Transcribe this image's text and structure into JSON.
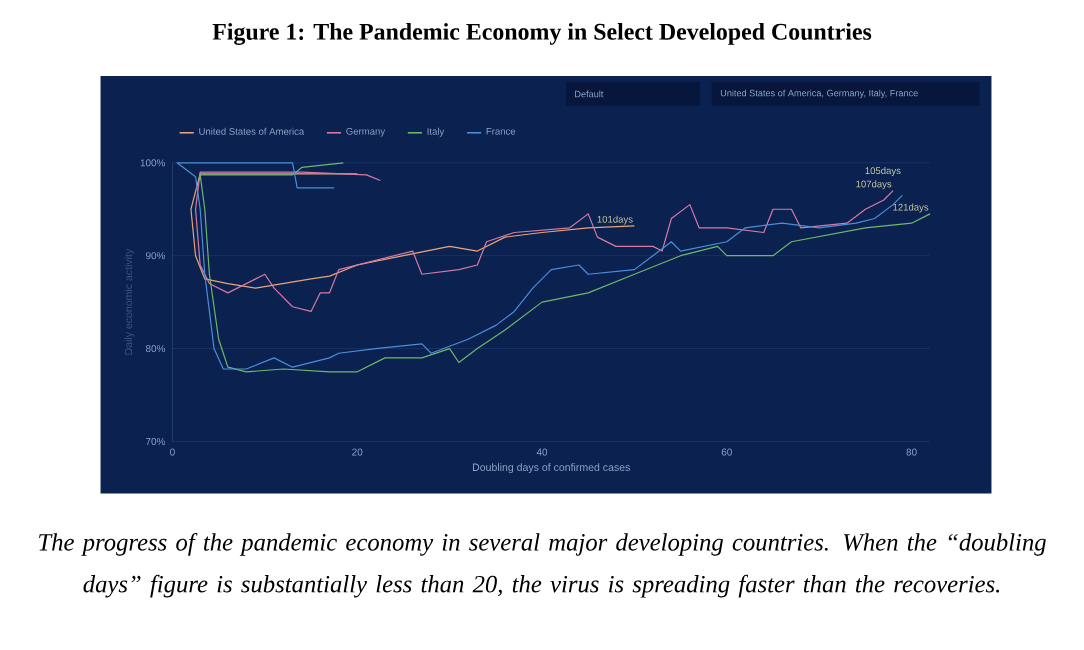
{
  "chart_data": {
    "type": "line",
    "title": "Figure 1: The Pandemic Economy in Select Developed Countries",
    "xlabel": "Doubling days of confirmed cases",
    "ylabel": "Daily economic activity",
    "xlim": [
      0,
      82
    ],
    "ylim": [
      70,
      100
    ],
    "xticks": [
      0,
      20,
      40,
      60,
      80
    ],
    "yticks": [
      {
        "value": 70,
        "label": "70%"
      },
      {
        "value": 80,
        "label": "80%"
      },
      {
        "value": 90,
        "label": "90%"
      },
      {
        "value": 100,
        "label": "100%"
      }
    ],
    "grid": "y",
    "legend": "top left",
    "line_style": "solid",
    "series": [
      {
        "name": "United States of America",
        "color": "#e8a57a",
        "x": [
          20,
          3,
          2,
          2.5,
          3.5,
          6,
          9,
          12,
          15,
          17,
          20,
          25,
          30,
          33,
          36,
          40,
          45,
          50
        ],
        "values": [
          98.8,
          98.8,
          95,
          90,
          87.5,
          87,
          86.5,
          87,
          87.5,
          87.8,
          89,
          90,
          91,
          90.5,
          92,
          92.5,
          93,
          93.2
        ]
      },
      {
        "name": "Germany",
        "color": "#d77aa5",
        "x": [
          22.5,
          21,
          14,
          3,
          2.5,
          3,
          4,
          6,
          10,
          11,
          13,
          15,
          16,
          17,
          18,
          22,
          26,
          27,
          31,
          33,
          34,
          37,
          43,
          45,
          46,
          48,
          52,
          53,
          54,
          56,
          57,
          60,
          64,
          65,
          67,
          68,
          73,
          75,
          77,
          78
        ],
        "values": [
          98.1,
          98.7,
          99,
          99,
          95,
          89,
          87,
          86,
          88,
          86.5,
          84.5,
          84,
          86,
          86,
          88.5,
          89.5,
          90.5,
          88,
          88.5,
          89,
          91.5,
          92.5,
          93,
          94.5,
          92,
          91,
          91,
          90.5,
          94,
          95.5,
          93,
          93,
          92.5,
          95,
          95,
          93,
          93.5,
          95,
          96,
          97
        ]
      },
      {
        "name": "Italy",
        "color": "#6fb86a",
        "x": [
          18.5,
          14,
          13,
          3,
          3.5,
          4,
          5,
          6,
          8,
          12,
          17,
          20,
          23,
          27,
          30,
          31,
          33,
          36,
          40,
          45,
          50,
          55,
          59,
          60,
          65,
          67,
          75,
          80,
          82
        ],
        "values": [
          100,
          99.5,
          98.7,
          98.7,
          95,
          88,
          81,
          78,
          77.5,
          77.8,
          77.5,
          77.5,
          79,
          79,
          80,
          78.5,
          80,
          82,
          85,
          86,
          88,
          90,
          91,
          90,
          90,
          91.5,
          93,
          93.5,
          94.5
        ]
      },
      {
        "name": "France",
        "color": "#4a8fd8",
        "x": [
          17.5,
          13.5,
          13,
          0.5,
          2.5,
          3,
          3.5,
          4.5,
          5.5,
          8,
          11,
          13,
          17,
          18,
          22,
          27,
          28,
          32,
          35,
          37,
          39,
          41,
          44,
          45,
          50,
          52,
          54,
          55,
          60,
          62,
          66,
          70,
          74,
          76,
          78,
          79
        ],
        "values": [
          97.3,
          97.3,
          100,
          100,
          98.5,
          95,
          88,
          80,
          77.8,
          77.8,
          79,
          78,
          79,
          79.5,
          80,
          80.5,
          79.5,
          81,
          82.5,
          84,
          86.5,
          88.5,
          89,
          88,
          88.5,
          90,
          91.5,
          90.5,
          91.5,
          93,
          93.5,
          93,
          93.5,
          94,
          95.5,
          96.5
        ]
      }
    ],
    "annotations": [
      "Default",
      "United States of America, Germany, Italy, France",
      {
        "text": "101days",
        "x": 50,
        "y": 93.2
      },
      {
        "text": "107days",
        "x": 78,
        "y": 97
      },
      {
        "text": "105days",
        "x": 79,
        "y": 96.5
      },
      {
        "text": "121days",
        "x": 82,
        "y": 94.5
      },
      "The progress of the pandemic economy in several major developing countries. When the “doubling days” figure is substantially less than 20, the virus is spreading faster than the recoveries."
    ]
  }
}
